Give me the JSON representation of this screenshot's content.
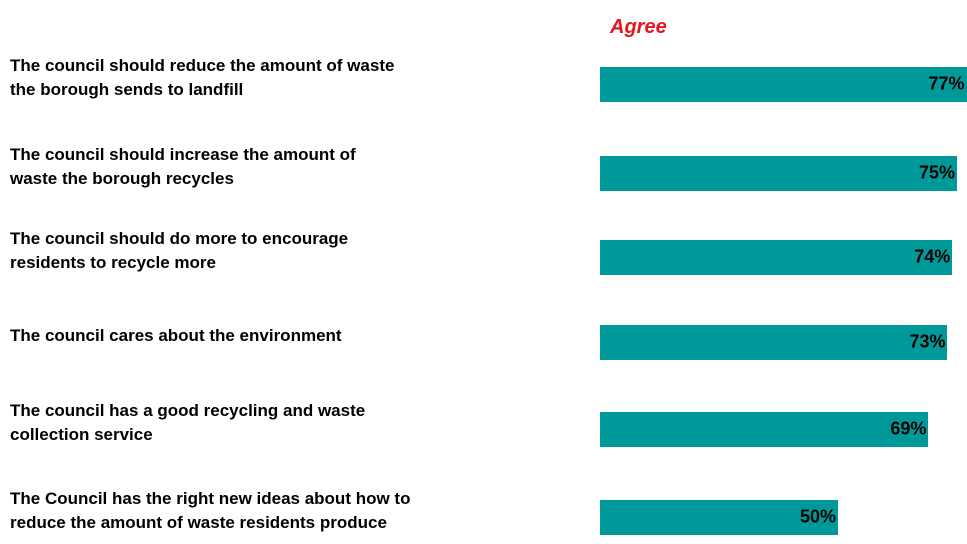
{
  "chart_data": {
    "type": "bar",
    "orientation": "horizontal",
    "title": "Agree",
    "categories": [
      "The council should reduce the amount of waste\nthe borough sends to landfill",
      "The council should increase the amount of\nwaste  the borough recycles",
      "The council should do more to encourage\nresidents to recycle more",
      "The council cares about the environment",
      "The council has a good recycling and waste\ncollection service",
      "The Council has the right new ideas about how to\nreduce the amount of waste residents produce"
    ],
    "values": [
      77,
      75,
      74,
      73,
      69,
      50
    ],
    "value_labels": [
      "77%",
      "75%",
      "74%",
      "73%",
      "69%",
      "50%"
    ],
    "color": "#009999"
  }
}
